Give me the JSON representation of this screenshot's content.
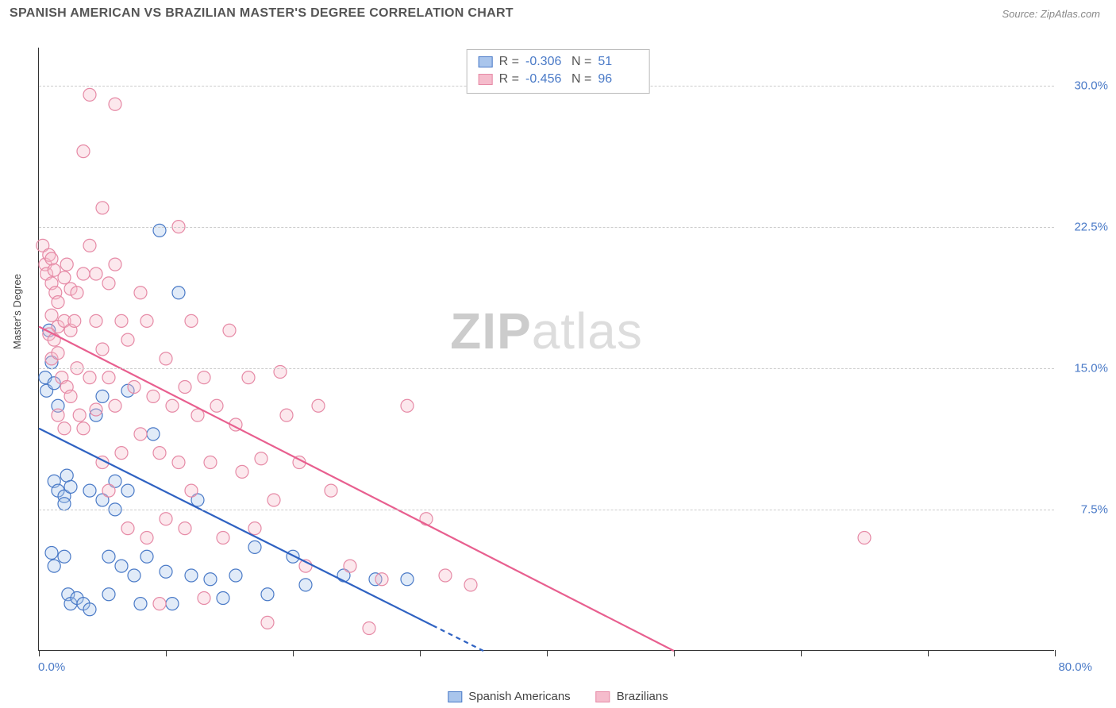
{
  "header": {
    "title": "SPANISH AMERICAN VS BRAZILIAN MASTER'S DEGREE CORRELATION CHART",
    "source": "Source: ZipAtlas.com"
  },
  "watermark": {
    "zip": "ZIP",
    "atlas": "atlas"
  },
  "chart": {
    "type": "scatter",
    "y_axis_label": "Master's Degree",
    "xlim": [
      0,
      80
    ],
    "ylim": [
      0,
      32
    ],
    "x_ticks": [
      0,
      10,
      20,
      30,
      40,
      50,
      60,
      70,
      80
    ],
    "x_tick_labels": {
      "0": "0.0%",
      "80": "80.0%"
    },
    "y_gridlines": [
      7.5,
      15.0,
      22.5,
      30.0
    ],
    "y_tick_labels": [
      "7.5%",
      "15.0%",
      "22.5%",
      "30.0%"
    ],
    "grid_color": "#cccccc",
    "axis_color": "#333333",
    "background_color": "#ffffff",
    "marker_radius": 8,
    "marker_fill_opacity": 0.35,
    "marker_stroke_width": 1.2,
    "series": [
      {
        "name": "Spanish Americans",
        "color_stroke": "#4a7ac7",
        "color_fill": "#a9c5ec",
        "R": "-0.306",
        "N": "51",
        "trend": {
          "x1": 0,
          "y1": 11.8,
          "x2": 35,
          "y2": 0,
          "color": "#2f62c2",
          "width": 2.2,
          "dash_after_x": 31
        },
        "points": [
          [
            0.5,
            14.5
          ],
          [
            0.6,
            13.8
          ],
          [
            0.8,
            17.0
          ],
          [
            1.0,
            15.3
          ],
          [
            1.2,
            14.2
          ],
          [
            1.5,
            13.0
          ],
          [
            1.2,
            9.0
          ],
          [
            1.5,
            8.5
          ],
          [
            2.0,
            8.2
          ],
          [
            2.0,
            7.8
          ],
          [
            2.2,
            9.3
          ],
          [
            2.5,
            8.7
          ],
          [
            1.0,
            5.2
          ],
          [
            1.2,
            4.5
          ],
          [
            2.0,
            5.0
          ],
          [
            2.3,
            3.0
          ],
          [
            2.5,
            2.5
          ],
          [
            3.0,
            2.8
          ],
          [
            3.5,
            2.5
          ],
          [
            4.0,
            2.2
          ],
          [
            4.0,
            8.5
          ],
          [
            4.5,
            12.5
          ],
          [
            5.0,
            13.5
          ],
          [
            5.0,
            8.0
          ],
          [
            5.5,
            5.0
          ],
          [
            5.5,
            3.0
          ],
          [
            6.0,
            9.0
          ],
          [
            6.0,
            7.5
          ],
          [
            6.5,
            4.5
          ],
          [
            7.0,
            13.8
          ],
          [
            7.0,
            8.5
          ],
          [
            7.5,
            4.0
          ],
          [
            8.0,
            2.5
          ],
          [
            8.5,
            5.0
          ],
          [
            9.0,
            11.5
          ],
          [
            9.5,
            22.3
          ],
          [
            10.0,
            4.2
          ],
          [
            10.5,
            2.5
          ],
          [
            11.0,
            19.0
          ],
          [
            12.0,
            4.0
          ],
          [
            12.5,
            8.0
          ],
          [
            13.5,
            3.8
          ],
          [
            14.5,
            2.8
          ],
          [
            15.5,
            4.0
          ],
          [
            17.0,
            5.5
          ],
          [
            18.0,
            3.0
          ],
          [
            20.0,
            5.0
          ],
          [
            21.0,
            3.5
          ],
          [
            24.0,
            4.0
          ],
          [
            26.5,
            3.8
          ],
          [
            29.0,
            3.8
          ]
        ]
      },
      {
        "name": "Brazilians",
        "color_stroke": "#e68aa6",
        "color_fill": "#f5bccc",
        "R": "-0.456",
        "N": "96",
        "trend": {
          "x1": 0,
          "y1": 17.2,
          "x2": 50,
          "y2": 0,
          "color": "#e85f8f",
          "width": 2.2
        },
        "points": [
          [
            0.3,
            21.5
          ],
          [
            0.5,
            20.5
          ],
          [
            0.6,
            20.0
          ],
          [
            0.8,
            21.0
          ],
          [
            1.0,
            20.8
          ],
          [
            1.0,
            19.5
          ],
          [
            1.2,
            20.2
          ],
          [
            1.3,
            19.0
          ],
          [
            1.5,
            18.5
          ],
          [
            1.0,
            17.8
          ],
          [
            1.5,
            17.2
          ],
          [
            0.8,
            16.8
          ],
          [
            1.2,
            16.5
          ],
          [
            1.0,
            15.5
          ],
          [
            1.5,
            15.8
          ],
          [
            2.0,
            19.8
          ],
          [
            2.2,
            20.5
          ],
          [
            2.5,
            19.2
          ],
          [
            2.0,
            17.5
          ],
          [
            2.5,
            17.0
          ],
          [
            1.8,
            14.5
          ],
          [
            2.2,
            14.0
          ],
          [
            2.5,
            13.5
          ],
          [
            1.5,
            12.5
          ],
          [
            2.0,
            11.8
          ],
          [
            2.8,
            17.5
          ],
          [
            3.0,
            19.0
          ],
          [
            3.5,
            20.0
          ],
          [
            3.0,
            15.0
          ],
          [
            3.2,
            12.5
          ],
          [
            3.5,
            11.8
          ],
          [
            3.5,
            26.5
          ],
          [
            4.0,
            29.5
          ],
          [
            4.0,
            21.5
          ],
          [
            4.5,
            20.0
          ],
          [
            4.5,
            17.5
          ],
          [
            4.0,
            14.5
          ],
          [
            4.5,
            12.8
          ],
          [
            5.0,
            23.5
          ],
          [
            5.5,
            19.5
          ],
          [
            5.0,
            16.0
          ],
          [
            5.5,
            14.5
          ],
          [
            5.0,
            10.0
          ],
          [
            5.5,
            8.5
          ],
          [
            6.0,
            29.0
          ],
          [
            6.0,
            20.5
          ],
          [
            6.5,
            17.5
          ],
          [
            6.0,
            13.0
          ],
          [
            6.5,
            10.5
          ],
          [
            7.0,
            16.5
          ],
          [
            7.5,
            14.0
          ],
          [
            7.0,
            6.5
          ],
          [
            8.0,
            19.0
          ],
          [
            8.5,
            17.5
          ],
          [
            8.0,
            11.5
          ],
          [
            8.5,
            6.0
          ],
          [
            9.0,
            13.5
          ],
          [
            9.5,
            10.5
          ],
          [
            9.5,
            2.5
          ],
          [
            10.0,
            15.5
          ],
          [
            10.0,
            7.0
          ],
          [
            10.5,
            13.0
          ],
          [
            11.0,
            22.5
          ],
          [
            11.5,
            14.0
          ],
          [
            11.0,
            10.0
          ],
          [
            11.5,
            6.5
          ],
          [
            12.0,
            17.5
          ],
          [
            12.5,
            12.5
          ],
          [
            12.0,
            8.5
          ],
          [
            13.0,
            14.5
          ],
          [
            13.5,
            10.0
          ],
          [
            13.0,
            2.8
          ],
          [
            14.0,
            13.0
          ],
          [
            14.5,
            6.0
          ],
          [
            15.0,
            17.0
          ],
          [
            15.5,
            12.0
          ],
          [
            16.0,
            9.5
          ],
          [
            16.5,
            14.5
          ],
          [
            17.0,
            6.5
          ],
          [
            17.5,
            10.2
          ],
          [
            18.0,
            1.5
          ],
          [
            18.5,
            8.0
          ],
          [
            19.0,
            14.8
          ],
          [
            19.5,
            12.5
          ],
          [
            20.5,
            10.0
          ],
          [
            21.0,
            4.5
          ],
          [
            22.0,
            13.0
          ],
          [
            23.0,
            8.5
          ],
          [
            24.5,
            4.5
          ],
          [
            26.0,
            1.2
          ],
          [
            27.0,
            3.8
          ],
          [
            29.0,
            13.0
          ],
          [
            30.5,
            7.0
          ],
          [
            32.0,
            4.0
          ],
          [
            34.0,
            3.5
          ],
          [
            65.0,
            6.0
          ]
        ]
      }
    ]
  },
  "legend": {
    "items": [
      {
        "label": "Spanish Americans"
      },
      {
        "label": "Brazilians"
      }
    ]
  },
  "statsbox": {
    "label_R": "R =",
    "label_N": "N ="
  }
}
